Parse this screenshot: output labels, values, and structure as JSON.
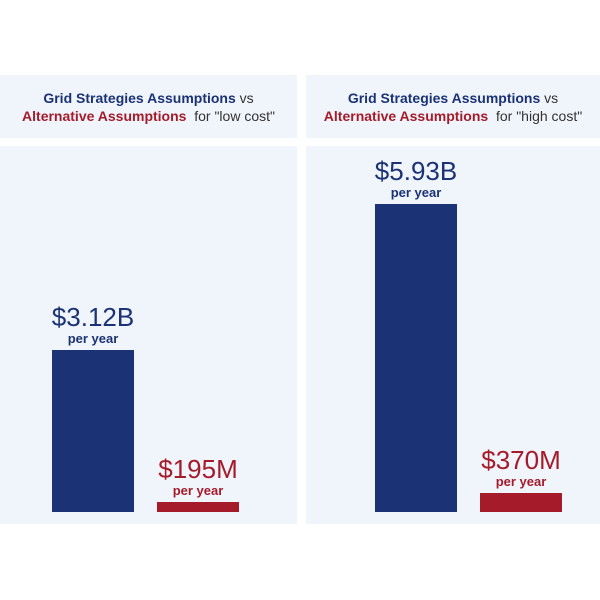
{
  "colors": {
    "primary": "#1b3275",
    "alternative": "#a51b2a",
    "panel": "#f0f4fb"
  },
  "chart_data": [
    {
      "type": "bar",
      "title_primary": "Grid Strategies Assumptions",
      "title_vs": "vs",
      "title_alt": "Alternative Assumptions",
      "title_suffix": "for \"low cost\"",
      "categories": [
        "Grid Strategies Assumptions",
        "Alternative Assumptions"
      ],
      "values": [
        3.12,
        0.195
      ],
      "unit": "$B per year",
      "labels": [
        "$3.12B",
        "$195M"
      ],
      "sublabel": "per year"
    },
    {
      "type": "bar",
      "title_primary": "Grid Strategies Assumptions",
      "title_vs": "vs",
      "title_alt": "Alternative Assumptions",
      "title_suffix": "for \"high cost\"",
      "categories": [
        "Grid Strategies Assumptions",
        "Alternative Assumptions"
      ],
      "values": [
        5.93,
        0.37
      ],
      "unit": "$B per year",
      "labels": [
        "$5.93B",
        "$370M"
      ],
      "sublabel": "per year"
    }
  ]
}
